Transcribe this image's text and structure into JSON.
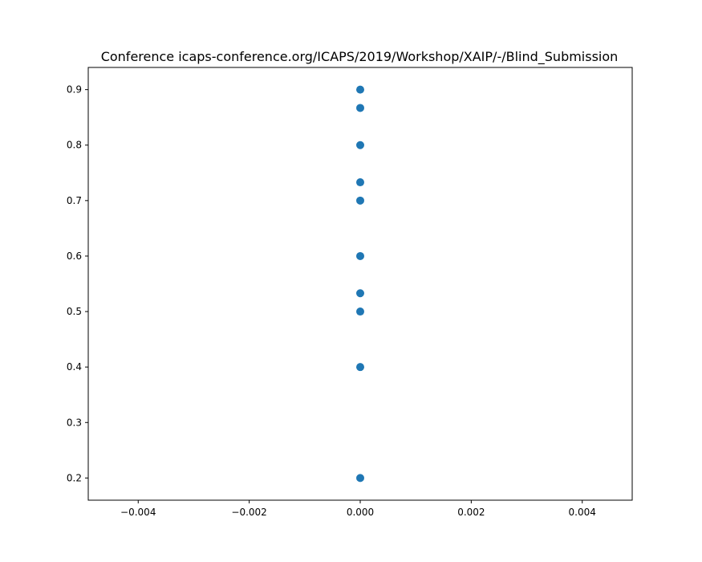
{
  "chart_data": {
    "type": "scatter",
    "title": "Conference icaps-conference.org/ICAPS/2019/Workshop/XAIP/-/Blind_Submission",
    "xlabel": "",
    "ylabel": "",
    "xlim": [
      -0.0049,
      0.0049
    ],
    "ylim": [
      0.16,
      0.94
    ],
    "xticks": [
      -0.004,
      -0.002,
      0.0,
      0.002,
      0.004
    ],
    "xtick_labels": [
      "−0.004",
      "−0.002",
      "0.000",
      "0.002",
      "0.004"
    ],
    "yticks": [
      0.2,
      0.3,
      0.4,
      0.5,
      0.6,
      0.7,
      0.8,
      0.9
    ],
    "ytick_labels": [
      "0.2",
      "0.3",
      "0.4",
      "0.5",
      "0.6",
      "0.7",
      "0.8",
      "0.9"
    ],
    "grid": false,
    "marker_color": "#1f77b4",
    "series": [
      {
        "points": [
          {
            "x": 0.0,
            "y": 0.9
          },
          {
            "x": 0.0,
            "y": 0.867
          },
          {
            "x": 0.0,
            "y": 0.8
          },
          {
            "x": 0.0,
            "y": 0.733
          },
          {
            "x": 0.0,
            "y": 0.7
          },
          {
            "x": 0.0,
            "y": 0.6
          },
          {
            "x": 0.0,
            "y": 0.533
          },
          {
            "x": 0.0,
            "y": 0.5
          },
          {
            "x": 0.0,
            "y": 0.4
          },
          {
            "x": 0.0,
            "y": 0.2
          }
        ]
      }
    ]
  }
}
